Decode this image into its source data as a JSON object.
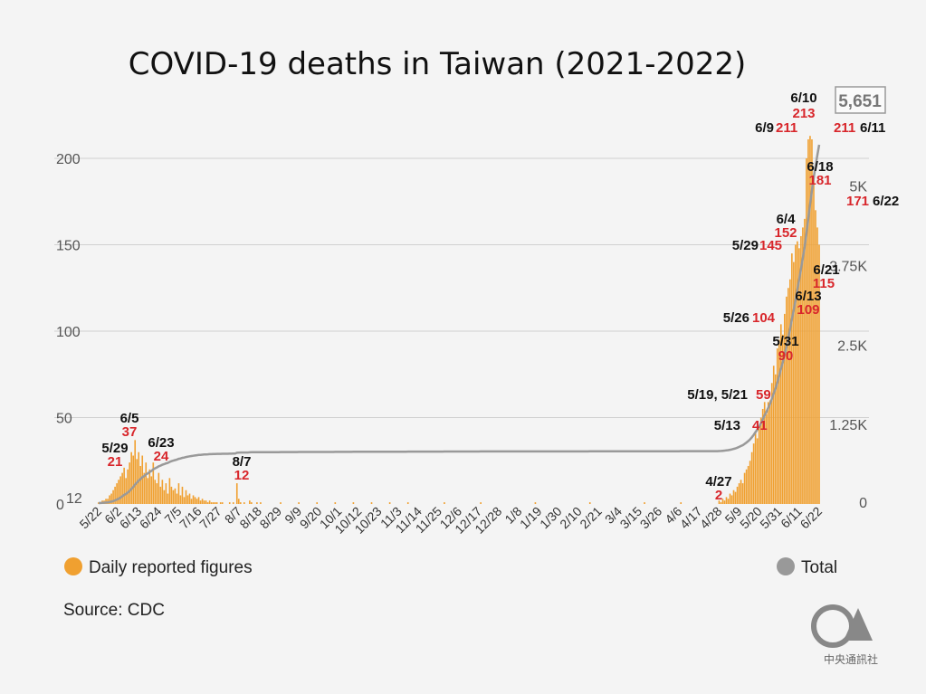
{
  "chart_data": {
    "type": "bar",
    "title": "COVID-19 deaths in Taiwan (2021-2022)",
    "series": [
      {
        "name": "Daily reported figures",
        "color": "#f0a030",
        "axis": "left"
      },
      {
        "name": "Total",
        "color": "#999999",
        "axis": "right",
        "style": "line"
      }
    ],
    "left_axis": {
      "range": [
        0,
        213
      ],
      "ticks": [
        "0",
        "50",
        "100",
        "150",
        "200"
      ]
    },
    "right_axis": {
      "range": [
        0,
        5651
      ],
      "ticks": [
        "0",
        "1.25K",
        "2.5K",
        "3.75K",
        "5K"
      ]
    },
    "x_ticks": [
      "5/22",
      "6/2",
      "6/13",
      "6/24",
      "7/5",
      "7/16",
      "7/27",
      "8/7",
      "8/18",
      "8/29",
      "9/9",
      "9/20",
      "10/1",
      "10/12",
      "10/23",
      "11/3",
      "11/14",
      "11/25",
      "12/6",
      "12/17",
      "12/28",
      "1/8",
      "1/19",
      "1/30",
      "2/10",
      "2/21",
      "3/4",
      "3/15",
      "3/26",
      "4/6",
      "4/17",
      "4/28",
      "5/9",
      "5/20",
      "5/31",
      "6/11",
      "6/22"
    ],
    "start_value_label": "12",
    "annotations": [
      {
        "date": "5/29",
        "value": "21"
      },
      {
        "date": "6/5",
        "value": "37"
      },
      {
        "date": "6/23",
        "value": "24"
      },
      {
        "date": "8/7",
        "value": "12"
      },
      {
        "date": "4/27",
        "value": "2"
      },
      {
        "date": "5/13",
        "value": "41"
      },
      {
        "date": "5/19, 5/21",
        "value": "59"
      },
      {
        "date": "5/31",
        "value": "90"
      },
      {
        "date": "5/26",
        "value": "104"
      },
      {
        "date": "6/13",
        "value": "109"
      },
      {
        "date": "6/21",
        "value": "115"
      },
      {
        "date": "5/29",
        "value": "145"
      },
      {
        "date": "6/4",
        "value": "152"
      },
      {
        "date": "6/22",
        "value": "171"
      },
      {
        "date": "6/18",
        "value": "181"
      },
      {
        "date": "6/9",
        "value": "211"
      },
      {
        "date": "6/11",
        "value": "211"
      },
      {
        "date": "6/10",
        "value": "213"
      }
    ],
    "total_label": "5,651",
    "legend_placement": "bottom",
    "grid": true
  },
  "source": "Source: CDC",
  "logo": {
    "name": "cna-logo",
    "caption": "中央通訊社"
  }
}
